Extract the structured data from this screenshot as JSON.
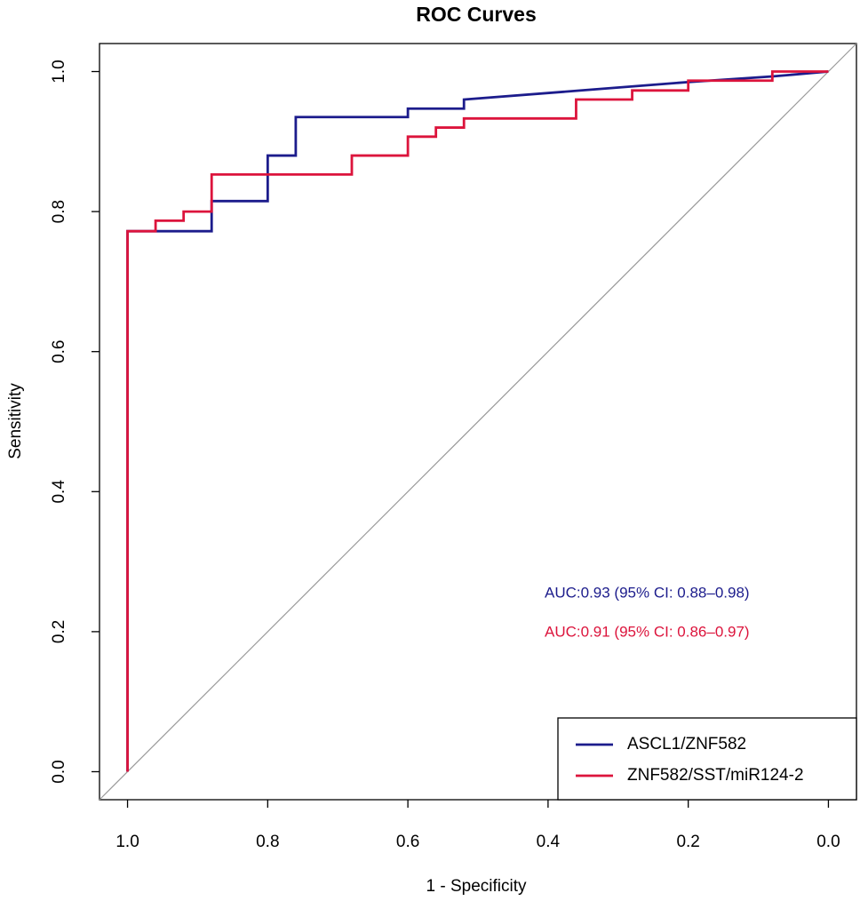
{
  "chart_data": {
    "type": "line",
    "title": "ROC Curves",
    "x_label": "1 - Specificity",
    "y_label": "Sensitivity",
    "xlim": [
      1.04,
      -0.04
    ],
    "ylim": [
      -0.04,
      1.04
    ],
    "xticks": [
      {
        "value": 1,
        "label": "1.0"
      },
      0.8,
      0.6,
      0.4,
      0.2,
      {
        "value": 0,
        "label": "0.0"
      }
    ],
    "yticks": [
      {
        "value": 0,
        "label": "0.0"
      },
      0.2,
      0.4,
      0.6,
      0.8,
      {
        "value": 1,
        "label": "1.0"
      }
    ],
    "series": [
      {
        "name": "ASCL1/ZNF582",
        "color": "#1c1c8c",
        "x": [
          1,
          1,
          0.88,
          0.88,
          0.8,
          0.8,
          0.76,
          0.76,
          0.6,
          0.6,
          0.52,
          0.52,
          0.2,
          0.08,
          0
        ],
        "y": [
          0,
          0.772,
          0.772,
          0.815,
          0.815,
          0.88,
          0.88,
          0.935,
          0.935,
          0.947,
          0.947,
          0.96,
          0.985,
          0.993,
          1
        ]
      },
      {
        "name": "ZNF582/SST/miR124-2",
        "color": "#dc143c",
        "x": [
          1,
          1,
          0.96,
          0.96,
          0.92,
          0.92,
          0.88,
          0.88,
          0.68,
          0.68,
          0.6,
          0.6,
          0.56,
          0.56,
          0.52,
          0.52,
          0.36,
          0.36,
          0.28,
          0.28,
          0.2,
          0.2,
          0.08,
          0.08,
          0
        ],
        "y": [
          0,
          0.772,
          0.772,
          0.787,
          0.787,
          0.8,
          0.8,
          0.853,
          0.853,
          0.88,
          0.88,
          0.907,
          0.907,
          0.92,
          0.92,
          0.933,
          0.933,
          0.96,
          0.96,
          0.973,
          0.973,
          0.987,
          0.987,
          1,
          1
        ]
      }
    ],
    "annotations": [
      {
        "text": "AUC:0.93 (95% CI: 0.88–0.98)",
        "color": "#1c1c8c"
      },
      {
        "text": "AUC:0.91 (95% CI: 0.86–0.97)",
        "color": "#dc143c"
      }
    ],
    "legend": "bottom-right"
  }
}
